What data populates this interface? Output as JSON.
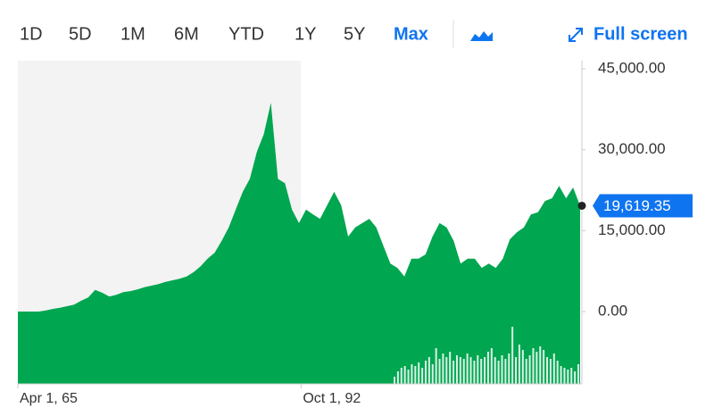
{
  "toolbar": {
    "ranges": [
      "1D",
      "5D",
      "1M",
      "6M",
      "YTD",
      "1Y",
      "5Y",
      "Max"
    ],
    "active_index": 7,
    "full_screen": "Full screen"
  },
  "chart_data": {
    "type": "area",
    "series": [
      {
        "color": "#00a650",
        "values": [
          0,
          0,
          0,
          0,
          200,
          500,
          700,
          1000,
          1300,
          2000,
          2600,
          4000,
          3500,
          2800,
          3100,
          3600,
          3800,
          4100,
          4500,
          4800,
          5100,
          5500,
          5800,
          6100,
          6500,
          7300,
          8400,
          9800,
          10900,
          13100,
          15600,
          18900,
          22200,
          24600,
          29600,
          32900,
          38700,
          24600,
          23800,
          18900,
          16400,
          18900,
          18000,
          17200,
          19700,
          22200,
          19700,
          13900,
          15600,
          16400,
          17200,
          15600,
          12200,
          8900,
          8100,
          6500,
          9800,
          9800,
          10600,
          13900,
          16400,
          15600,
          13100,
          8900,
          9800,
          9800,
          8100,
          8900,
          8100,
          9800,
          13400,
          14700,
          15600,
          18000,
          18400,
          20500,
          21000,
          23300,
          21000,
          23000,
          19619.35
        ]
      }
    ],
    "current_label": "19,619.35",
    "volume": {
      "color": "#00a650",
      "values": [
        8,
        14,
        18,
        20,
        16,
        22,
        20,
        24,
        18,
        26,
        30,
        22,
        40,
        28,
        34,
        30,
        36,
        26,
        32,
        30,
        28,
        34,
        30,
        26,
        32,
        28,
        30,
        36,
        40,
        30,
        26,
        32,
        28,
        34,
        64,
        30,
        44,
        38,
        28,
        32,
        40,
        36,
        42,
        38,
        30,
        28,
        34,
        26,
        20,
        18,
        16,
        18,
        14,
        22
      ]
    },
    "xlim": [
      0,
      80
    ],
    "xticks": [
      {
        "value": 0,
        "label": "Apr 1, 65"
      },
      {
        "value": 40.3,
        "label": "Oct 1, 92"
      }
    ],
    "ylim": [
      -13400,
      46500
    ],
    "yticks": [
      {
        "value": 0,
        "label": "0.00"
      },
      {
        "value": 15000,
        "label": "15,000.00"
      },
      {
        "value": 30000,
        "label": "30,000.00"
      },
      {
        "value": 45000,
        "label": "45,000.00"
      }
    ],
    "grid": false
  }
}
